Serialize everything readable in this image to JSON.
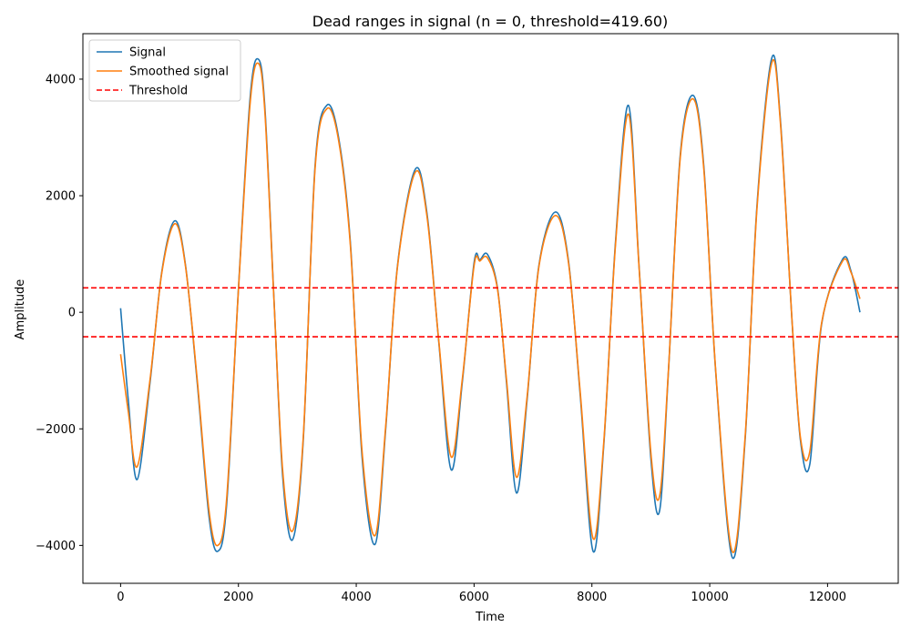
{
  "chart_data": {
    "type": "line",
    "title": "Dead ranges in signal (n = 0, threshold=419.60)",
    "xlabel": "Time",
    "ylabel": "Amplitude",
    "xlim": [
      -640,
      13200
    ],
    "ylim": [
      -4650,
      4780
    ],
    "xticks": [
      0,
      2000,
      4000,
      6000,
      8000,
      10000,
      12000
    ],
    "yticks": [
      -4000,
      -2000,
      0,
      2000,
      4000
    ],
    "threshold": 419.6,
    "legend_position": "top-left",
    "grid": false,
    "series": [
      {
        "name": "Signal",
        "color": "#1f77b4",
        "x": [
          0,
          130,
          280,
          500,
          700,
          920,
          1100,
          1300,
          1500,
          1650,
          1800,
          2000,
          2200,
          2340,
          2450,
          2600,
          2750,
          2920,
          3100,
          3300,
          3500,
          3700,
          3900,
          4100,
          4320,
          4500,
          4700,
          5000,
          5200,
          5400,
          5610,
          5800,
          6000,
          6100,
          6230,
          6400,
          6550,
          6720,
          6900,
          7100,
          7380,
          7600,
          7800,
          8020,
          8200,
          8400,
          8620,
          8800,
          9000,
          9150,
          9300,
          9500,
          9720,
          9900,
          10100,
          10380,
          10600,
          10800,
          11050,
          11200,
          11400,
          11540,
          11700,
          11900,
          12250,
          12400,
          12550
        ],
        "values": [
          70,
          -1500,
          -2870,
          -1200,
          700,
          1570,
          820,
          -1200,
          -3500,
          -4100,
          -3300,
          400,
          3700,
          4340,
          3500,
          300,
          -2800,
          -3900,
          -2200,
          2500,
          3550,
          3000,
          1200,
          -2500,
          -3980,
          -2000,
          800,
          2450,
          1700,
          -500,
          -2700,
          -1200,
          850,
          900,
          990,
          400,
          -1200,
          -3100,
          -1500,
          800,
          1720,
          900,
          -1400,
          -4100,
          -2300,
          1200,
          3550,
          800,
          -2500,
          -3400,
          -1000,
          2700,
          3720,
          2500,
          -1000,
          -4200,
          -2200,
          1800,
          4350,
          3300,
          -200,
          -2200,
          -2600,
          -200,
          900,
          700,
          0
        ]
      },
      {
        "name": "Smoothed signal",
        "color": "#ff7f0e",
        "x": [
          0,
          130,
          280,
          500,
          700,
          920,
          1100,
          1300,
          1500,
          1650,
          1800,
          2000,
          2200,
          2340,
          2450,
          2600,
          2750,
          2920,
          3100,
          3300,
          3500,
          3700,
          3900,
          4100,
          4320,
          4500,
          4700,
          5000,
          5200,
          5400,
          5610,
          5800,
          6000,
          6100,
          6230,
          6400,
          6550,
          6720,
          6900,
          7100,
          7380,
          7600,
          7800,
          8020,
          8200,
          8400,
          8620,
          8800,
          9000,
          9150,
          9300,
          9500,
          9720,
          9900,
          10100,
          10380,
          10600,
          10800,
          11050,
          11200,
          11400,
          11540,
          11700,
          11900,
          12250,
          12400,
          12550
        ],
        "values": [
          -720,
          -1700,
          -2650,
          -1150,
          680,
          1520,
          800,
          -1150,
          -3400,
          -4000,
          -3200,
          380,
          3600,
          4270,
          3420,
          280,
          -2700,
          -3750,
          -2150,
          2450,
          3490,
          2950,
          1150,
          -2400,
          -3830,
          -1950,
          780,
          2400,
          1650,
          -480,
          -2480,
          -1150,
          800,
          880,
          930,
          380,
          -1150,
          -2830,
          -1450,
          780,
          1660,
          870,
          -1350,
          -3880,
          -2250,
          1150,
          3400,
          780,
          -2400,
          -3150,
          -980,
          2650,
          3660,
          2450,
          -980,
          -4100,
          -2150,
          1750,
          4270,
          3250,
          -190,
          -2150,
          -2380,
          -180,
          870,
          680,
          230
        ]
      }
    ],
    "threshold_series": {
      "name": "Threshold",
      "color": "#ff0000"
    }
  }
}
